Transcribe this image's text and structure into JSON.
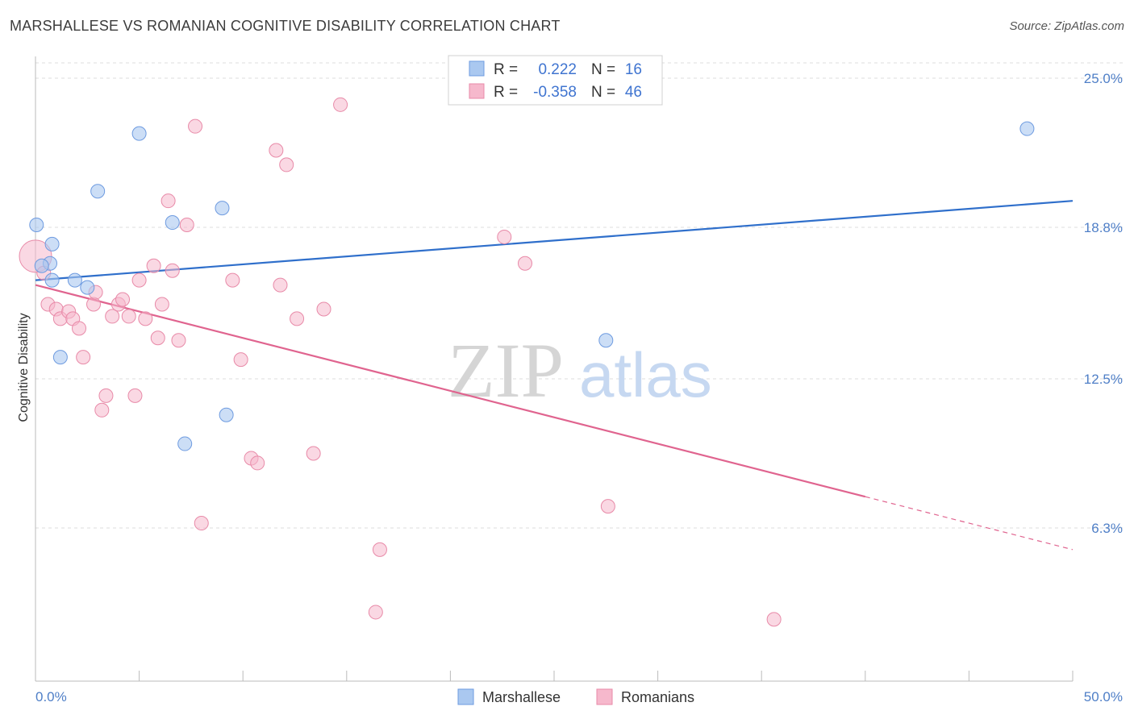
{
  "title": "MARSHALLESE VS ROMANIAN COGNITIVE DISABILITY CORRELATION CHART",
  "source": "Source: ZipAtlas.com",
  "watermark": {
    "zip": "ZIP",
    "atlas": "atlas"
  },
  "colors": {
    "marshallese_fill": "#aac8f0",
    "marshallese_stroke": "#6e9be0",
    "marshallese_line": "#2f6fcb",
    "romanians_fill": "#f6b8cc",
    "romanians_stroke": "#e88aa8",
    "romanians_line": "#e0648f",
    "axis_text": "#4f7fc7",
    "grid": "#dddddd"
  },
  "legend": {
    "rows": [
      {
        "r_label": "R =",
        "r_value": "0.222",
        "n_label": "N =",
        "n_value": "16"
      },
      {
        "r_label": "R =",
        "r_value": "-0.358",
        "n_label": "N =",
        "n_value": "46"
      }
    ]
  },
  "chart_data": {
    "type": "scatter",
    "ylabel": "Cognitive Disability",
    "xlim": [
      0,
      50
    ],
    "ylim": [
      0,
      25.9
    ],
    "x_tick_labels": [
      "0.0%",
      "50.0%"
    ],
    "y_ticks": [
      {
        "value": 6.3,
        "label": "6.3%"
      },
      {
        "value": 12.5,
        "label": "12.5%"
      },
      {
        "value": 18.8,
        "label": "18.8%"
      },
      {
        "value": 25.0,
        "label": "25.0%"
      }
    ],
    "series": [
      {
        "name": "Marshallese",
        "points": [
          [
            0.05,
            18.9
          ],
          [
            0.8,
            18.1
          ],
          [
            0.7,
            17.3
          ],
          [
            0.3,
            17.2
          ],
          [
            0.8,
            16.6
          ],
          [
            1.9,
            16.6
          ],
          [
            2.5,
            16.3
          ],
          [
            5.0,
            22.7
          ],
          [
            3.0,
            20.3
          ],
          [
            6.6,
            19.0
          ],
          [
            9.0,
            19.6
          ],
          [
            1.2,
            13.4
          ],
          [
            7.2,
            9.8
          ],
          [
            9.2,
            11.0
          ],
          [
            27.5,
            14.1
          ],
          [
            47.8,
            22.9
          ]
        ],
        "trend": {
          "x": [
            0,
            50
          ],
          "y": [
            16.6,
            19.9
          ]
        }
      },
      {
        "name": "Romanians",
        "points": [
          [
            0.0,
            17.6
          ],
          [
            0.6,
            15.6
          ],
          [
            1.0,
            15.4
          ],
          [
            1.2,
            15.0
          ],
          [
            1.6,
            15.3
          ],
          [
            1.8,
            15.0
          ],
          [
            2.1,
            14.6
          ],
          [
            2.3,
            13.4
          ],
          [
            2.8,
            15.6
          ],
          [
            2.9,
            16.1
          ],
          [
            3.2,
            11.2
          ],
          [
            3.4,
            11.8
          ],
          [
            3.7,
            15.1
          ],
          [
            4.0,
            15.6
          ],
          [
            4.2,
            15.8
          ],
          [
            4.5,
            15.1
          ],
          [
            4.8,
            11.8
          ],
          [
            5.0,
            16.6
          ],
          [
            5.3,
            15.0
          ],
          [
            5.7,
            17.2
          ],
          [
            5.9,
            14.2
          ],
          [
            6.1,
            15.6
          ],
          [
            6.4,
            19.9
          ],
          [
            6.6,
            17.0
          ],
          [
            6.9,
            14.1
          ],
          [
            7.3,
            18.9
          ],
          [
            7.7,
            23.0
          ],
          [
            8.0,
            6.5
          ],
          [
            9.5,
            16.6
          ],
          [
            9.9,
            13.3
          ],
          [
            10.4,
            9.2
          ],
          [
            10.7,
            9.0
          ],
          [
            11.6,
            22.0
          ],
          [
            11.8,
            16.4
          ],
          [
            12.1,
            21.4
          ],
          [
            12.6,
            15.0
          ],
          [
            13.4,
            9.4
          ],
          [
            13.9,
            15.4
          ],
          [
            14.7,
            23.9
          ],
          [
            16.4,
            2.8
          ],
          [
            16.6,
            5.4
          ],
          [
            22.6,
            18.4
          ],
          [
            23.6,
            17.3
          ],
          [
            27.6,
            7.2
          ],
          [
            35.6,
            2.5
          ],
          [
            0.4,
            16.9
          ]
        ],
        "trend": {
          "x": [
            0,
            40
          ],
          "y": [
            16.4,
            7.6
          ]
        },
        "trend_dashed": {
          "x": [
            40,
            50
          ],
          "y": [
            7.6,
            5.4
          ]
        }
      }
    ],
    "bottom_legend": [
      "Marshallese",
      "Romanians"
    ],
    "grid": "horizontal-dashed"
  }
}
